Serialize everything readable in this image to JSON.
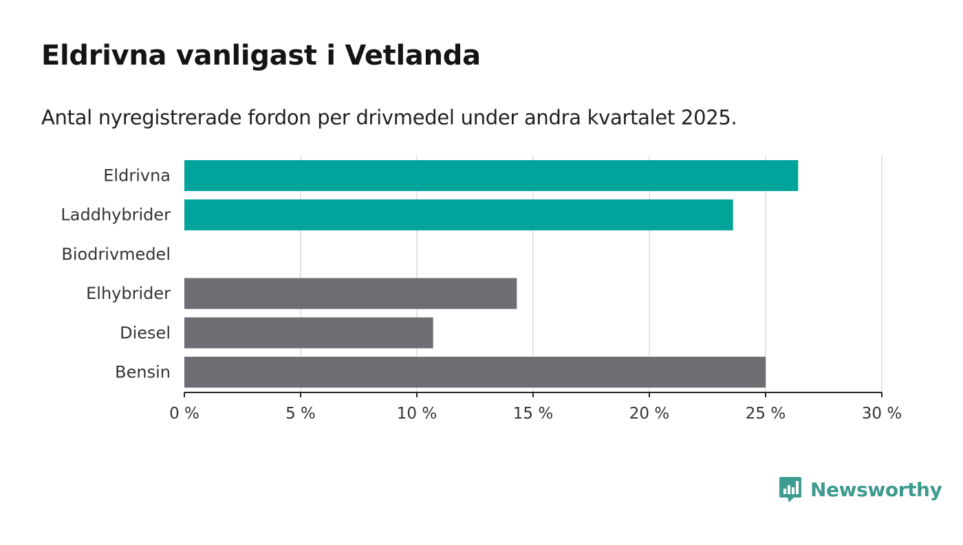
{
  "header": {
    "title": "Eldrivna vanligast i Vetlanda",
    "subtitle": "Antal nyregistrerade fordon per drivmedel under andra kvartalet 2025."
  },
  "brand": {
    "name": "Newsworthy",
    "logo_icon": "newsworthy-chart-bubble-icon"
  },
  "colors": {
    "highlight": "#00a49a",
    "default": "#6e6d74",
    "grid": "#dcdcdc",
    "axis": "#222222",
    "brand": "#3d9b8f"
  },
  "chart_data": {
    "type": "bar",
    "orientation": "horizontal",
    "categories": [
      "Eldrivna",
      "Laddhybrider",
      "Biodrivmedel",
      "Elhybrider",
      "Diesel",
      "Bensin"
    ],
    "values": [
      26.4,
      23.6,
      0,
      14.3,
      10.7,
      25.0
    ],
    "highlighted": [
      true,
      true,
      false,
      false,
      false,
      false
    ],
    "xlim": [
      0,
      30
    ],
    "x_ticks": [
      0,
      5,
      10,
      15,
      20,
      25,
      30
    ],
    "x_tick_labels": [
      "0 %",
      "5 %",
      "10 %",
      "15 %",
      "20 %",
      "25 %",
      "30 %"
    ],
    "grid": true,
    "legend": false
  }
}
